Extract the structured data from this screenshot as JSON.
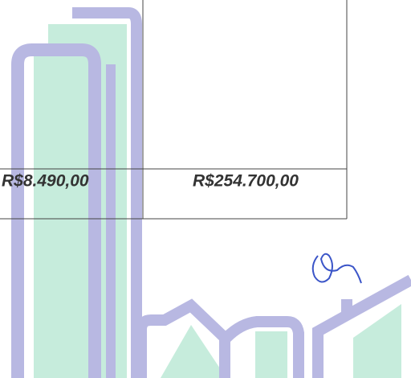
{
  "table": {
    "rows": [
      [
        "R$8.490,00",
        "R$254.700,00"
      ]
    ]
  }
}
